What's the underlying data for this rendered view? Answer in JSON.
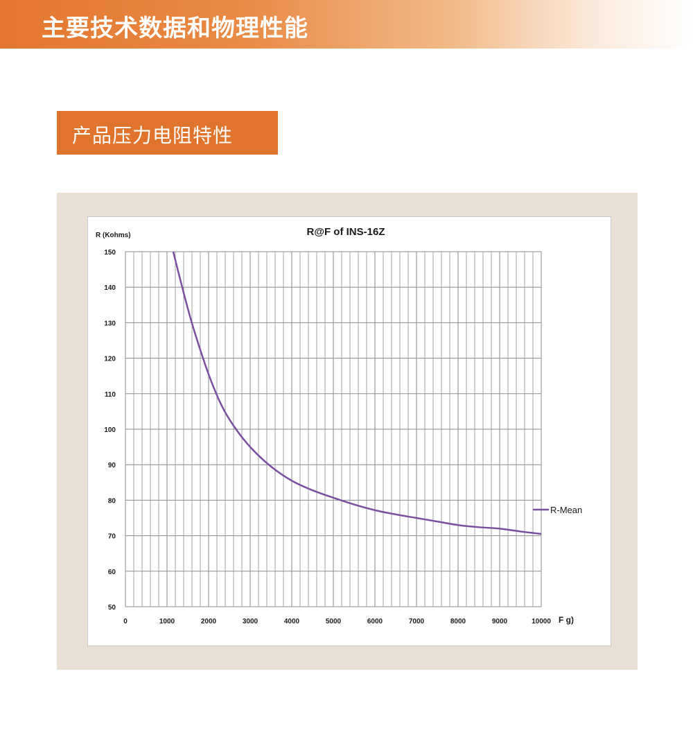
{
  "header": {
    "title": "主要技术数据和物理性能"
  },
  "section": {
    "title": "产品压力电阻特性"
  },
  "chart_data": {
    "type": "line",
    "title": "R@F of  INS-16Z",
    "ylabel": "R (Kohms)",
    "xlabel": "F g)",
    "xlim": [
      0,
      10000
    ],
    "ylim": [
      50,
      150
    ],
    "x_ticks": [
      0,
      1000,
      2000,
      3000,
      4000,
      5000,
      6000,
      7000,
      8000,
      9000,
      10000
    ],
    "y_ticks": [
      50,
      60,
      70,
      80,
      90,
      100,
      110,
      120,
      130,
      140,
      150
    ],
    "grid": true,
    "legend": "right",
    "series": [
      {
        "name": "R-Mean",
        "color": "#7b4fa0",
        "x": [
          1150,
          1300,
          1500,
          1700,
          2000,
          2300,
          2600,
          3000,
          3500,
          4000,
          4500,
          5000,
          5500,
          6000,
          6500,
          7000,
          7500,
          8000,
          8500,
          9000,
          9500,
          10000
        ],
        "y": [
          150,
          143,
          134,
          126,
          115.5,
          107,
          101,
          95,
          89.5,
          85.5,
          82.8,
          80.7,
          78.8,
          77.2,
          76,
          75,
          74,
          73,
          72.4,
          72,
          71.2,
          70.5
        ]
      }
    ]
  }
}
